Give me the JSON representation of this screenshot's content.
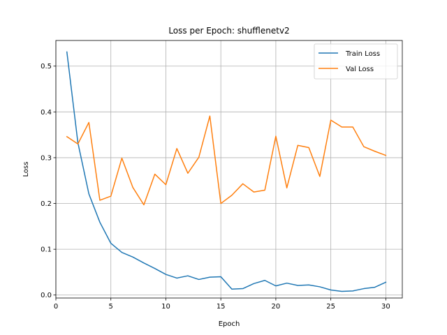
{
  "chart_data": {
    "type": "line",
    "title": "Loss per Epoch: shufflenetv2",
    "xlabel": "Epoch",
    "ylabel": "Loss",
    "xlim": [
      0,
      31.5
    ],
    "ylim": [
      -0.0065,
      0.556
    ],
    "xticks": [
      0,
      5,
      10,
      15,
      20,
      25,
      30
    ],
    "yticks": [
      0.0,
      0.1,
      0.2,
      0.3,
      0.4,
      0.5
    ],
    "ytick_labels": [
      "0.0",
      "0.1",
      "0.2",
      "0.3",
      "0.4",
      "0.5"
    ],
    "grid": true,
    "legend_position": "top-right",
    "x": [
      1,
      2,
      3,
      4,
      5,
      6,
      7,
      8,
      9,
      10,
      11,
      12,
      13,
      14,
      15,
      16,
      17,
      18,
      19,
      20,
      21,
      22,
      23,
      24,
      25,
      26,
      27,
      28,
      29,
      30
    ],
    "series": [
      {
        "name": "Train Loss",
        "color": "#1f77b4",
        "values": [
          0.531,
          0.333,
          0.221,
          0.159,
          0.113,
          0.093,
          0.083,
          0.07,
          0.058,
          0.045,
          0.037,
          0.042,
          0.034,
          0.039,
          0.04,
          0.013,
          0.014,
          0.025,
          0.032,
          0.02,
          0.026,
          0.021,
          0.022,
          0.018,
          0.011,
          0.008,
          0.009,
          0.014,
          0.017,
          0.028
        ]
      },
      {
        "name": "Val Loss",
        "color": "#ff7f0e",
        "values": [
          0.346,
          0.33,
          0.377,
          0.207,
          0.216,
          0.299,
          0.235,
          0.197,
          0.264,
          0.241,
          0.32,
          0.266,
          0.301,
          0.391,
          0.2,
          0.218,
          0.243,
          0.225,
          0.229,
          0.347,
          0.234,
          0.327,
          0.322,
          0.259,
          0.382,
          0.367,
          0.367,
          0.324,
          0.314,
          0.305
        ]
      }
    ]
  }
}
